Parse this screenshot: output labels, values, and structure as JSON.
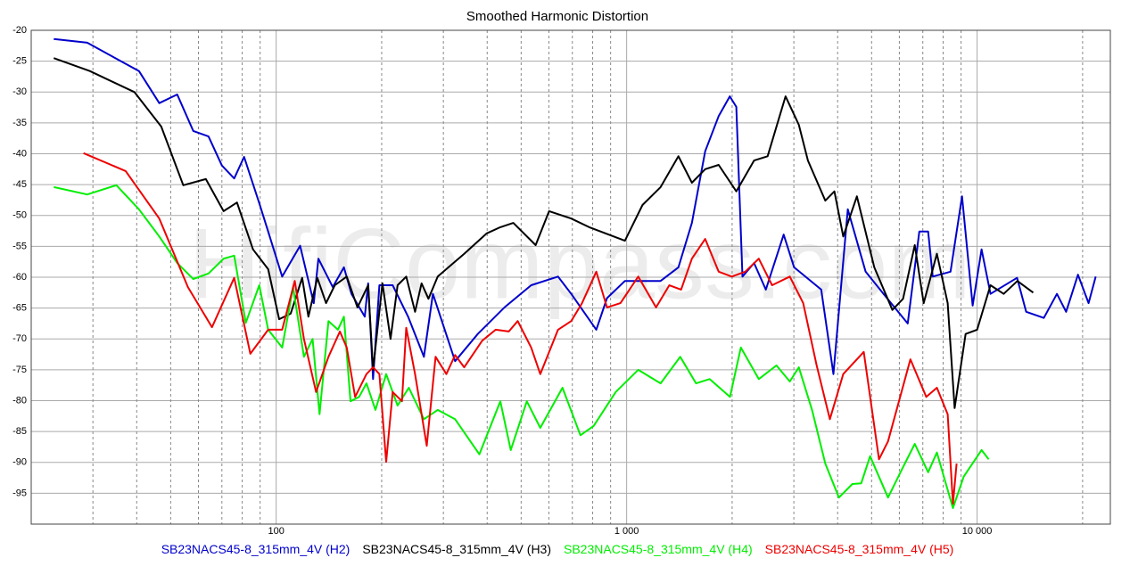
{
  "chart_data": {
    "type": "line",
    "title": "Smoothed Harmonic Distortion",
    "watermark": "HifiCompass.com",
    "xscale": "log",
    "xlim": [
      20,
      24000
    ],
    "xticks": [
      100,
      {
        "value": 1000,
        "label": "1 000"
      },
      {
        "value": 10000,
        "label": "10 000"
      }
    ],
    "xminor_ticks": [
      30,
      40,
      50,
      60,
      70,
      80,
      90,
      200,
      300,
      400,
      500,
      600,
      700,
      800,
      900,
      2000,
      3000,
      4000,
      5000,
      6000,
      7000,
      8000,
      9000,
      20000
    ],
    "ylim": [
      -100,
      -20
    ],
    "yticks": [
      -20,
      -25,
      -30,
      -35,
      -40,
      -45,
      -50,
      -55,
      -60,
      -65,
      -70,
      -75,
      -80,
      -85,
      -90,
      -95
    ],
    "grid": true,
    "legend": "bottom",
    "series": [
      {
        "name": "SB23NACS45-8_315mm_4V (H2)",
        "color": "#0000cc",
        "x": [
          23.2,
          28.9,
          35,
          40.6,
          46.4,
          52.2,
          58,
          64.1,
          70,
          75.9,
          81,
          89.5,
          94.9,
          104,
          117,
          128,
          132,
          145,
          156,
          164,
          179,
          183,
          189,
          197,
          215,
          238,
          264,
          280,
          324,
          376,
          448,
          534,
          637,
          695,
          819,
          879,
          989,
          1250,
          1405,
          1535,
          1675,
          1830,
          1970,
          2055,
          2140,
          2310,
          2495,
          2805,
          3005,
          3590,
          3890,
          4275,
          4808,
          5410,
          6340,
          6840,
          7250,
          7470,
          8400,
          9060,
          9710,
          10300,
          10920,
          13000,
          13800,
          15500,
          16900,
          17950,
          19400,
          20800,
          21800
        ],
        "values": [
          -21.4,
          -22.0,
          -24.6,
          -26.6,
          -31.8,
          -30.4,
          -36.3,
          -37.2,
          -41.9,
          -44.0,
          -40.5,
          -48.0,
          -52.6,
          -59.9,
          -54.9,
          -64.2,
          -57.0,
          -61.6,
          -58.4,
          -62.7,
          -66.4,
          -61.0,
          -76.5,
          -61.3,
          -61.3,
          -66.4,
          -72.9,
          -62.7,
          -73.6,
          -69.2,
          -64.9,
          -61.3,
          -59.9,
          -62.7,
          -68.5,
          -63.4,
          -60.6,
          -60.6,
          -58.4,
          -51.2,
          -39.6,
          -33.9,
          -30.7,
          -32.4,
          -59.9,
          -57.7,
          -62.0,
          -53.1,
          -58.4,
          -62.0,
          -75.7,
          -49.0,
          -59.1,
          -62.7,
          -67.5,
          -52.6,
          -52.6,
          -59.9,
          -59.1,
          -46.9,
          -64.6,
          -55.5,
          -62.7,
          -60.1,
          -65.6,
          -66.6,
          -62.7,
          -65.6,
          -59.6,
          -64.2,
          -59.9
        ]
      },
      {
        "name": "SB23NACS45-8_315mm_4V (H3)",
        "color": "#000000",
        "x": [
          23.2,
          29.4,
          39.4,
          47,
          54.3,
          63,
          70.8,
          77.3,
          85.9,
          94.9,
          102,
          110,
          118.6,
          123.6,
          131,
          138.8,
          147,
          159,
          170.6,
          183,
          189,
          201,
          212,
          222,
          235,
          249,
          260,
          272,
          289,
          344,
          399,
          436,
          475,
          550,
          601,
          695,
          782,
          989,
          1110,
          1250,
          1405,
          1535,
          1675,
          1830,
          2055,
          2310,
          2525,
          2840,
          3100,
          3290,
          3690,
          3915,
          4150,
          4540,
          5090,
          5730,
          6150,
          6640,
          7040,
          7680,
          8240,
          8630,
          9270,
          10000,
          10920,
          11910,
          13030,
          14460
        ],
        "values": [
          -24.5,
          -26.6,
          -30.0,
          -35.6,
          -45.1,
          -44.1,
          -49.3,
          -47.9,
          -55.5,
          -58.7,
          -66.8,
          -65.9,
          -60.1,
          -66.4,
          -60.1,
          -64.2,
          -61.3,
          -59.9,
          -64.9,
          -61.3,
          -75.0,
          -61.0,
          -70.0,
          -61.3,
          -59.9,
          -65.6,
          -61.0,
          -63.5,
          -59.9,
          -56.2,
          -52.9,
          -51.9,
          -51.2,
          -54.8,
          -49.3,
          -50.5,
          -51.9,
          -54.1,
          -48.3,
          -45.4,
          -40.4,
          -44.7,
          -42.5,
          -41.8,
          -46.1,
          -41.1,
          -40.4,
          -30.7,
          -35.3,
          -41.1,
          -47.6,
          -46.1,
          -53.4,
          -46.9,
          -58.4,
          -65.3,
          -63.5,
          -54.8,
          -64.2,
          -56.2,
          -64.2,
          -81.2,
          -69.2,
          -68.5,
          -61.3,
          -62.7,
          -60.6,
          -62.5
        ]
      },
      {
        "name": "SB23NACS45-8_315mm_4V (H4)",
        "color": "#00ee00",
        "x": [
          23.2,
          28.9,
          35,
          40.6,
          46.4,
          52.2,
          58,
          64.1,
          70.8,
          75.9,
          81.9,
          89.5,
          94.9,
          104,
          111.7,
          120,
          127,
          133,
          141,
          150,
          156,
          163,
          172.4,
          181,
          192,
          206,
          222,
          239,
          264,
          289,
          324,
          380,
          436,
          467,
          519,
          567,
          656,
          738,
          805,
          931,
          1079,
          1250,
          1422,
          1578,
          1725,
          1972,
          2118,
          2382,
          2675,
          2922,
          3100,
          3380,
          3690,
          4035,
          4405,
          4670,
          4950,
          5570,
          6080,
          6640,
          7250,
          7680,
          8530,
          9160,
          10300,
          10790
        ],
        "values": [
          -45.4,
          -46.6,
          -45.1,
          -49.0,
          -53.4,
          -57.7,
          -60.3,
          -59.4,
          -57.0,
          -56.5,
          -67.4,
          -61.3,
          -68.5,
          -71.4,
          -61.6,
          -72.9,
          -70.0,
          -82.2,
          -67.1,
          -68.5,
          -66.4,
          -80.1,
          -79.4,
          -77.2,
          -81.5,
          -75.7,
          -80.8,
          -77.9,
          -83.0,
          -81.5,
          -83.0,
          -88.7,
          -80.1,
          -88.0,
          -80.1,
          -84.4,
          -77.9,
          -85.6,
          -84.1,
          -78.6,
          -75.0,
          -77.2,
          -72.9,
          -77.2,
          -76.5,
          -79.4,
          -71.4,
          -76.5,
          -74.3,
          -76.9,
          -74.6,
          -81.5,
          -90.2,
          -95.7,
          -93.5,
          -93.4,
          -89.0,
          -95.7,
          -91.3,
          -87.0,
          -91.6,
          -88.4,
          -97.4,
          -92.3,
          -88.0,
          -89.5
        ]
      },
      {
        "name": "SB23NACS45-8_315mm_4V (H5)",
        "color": "#ee0000",
        "x": [
          28.2,
          37.2,
          46.4,
          56,
          65.6,
          75.9,
          84.4,
          94.9,
          104,
          113,
          120,
          130,
          141,
          152,
          159,
          168,
          181,
          189,
          197,
          206,
          215,
          228.5,
          235,
          249,
          269,
          285,
          306,
          324,
          344,
          387,
          423,
          461,
          489,
          534,
          567,
          637,
          695,
          746,
          819,
          879,
          960,
          1079,
          1213,
          1324,
          1430,
          1535,
          1675,
          1830,
          1995,
          2180,
          2382,
          2600,
          2922,
          3190,
          3485,
          3800,
          4150,
          4750,
          5250,
          5570,
          6450,
          7160,
          7680,
          8240,
          8530,
          8740
        ],
        "values": [
          -39.9,
          -42.8,
          -50.5,
          -61.6,
          -68.1,
          -60.1,
          -72.4,
          -68.5,
          -68.5,
          -60.6,
          -70.0,
          -78.6,
          -72.9,
          -68.8,
          -71.4,
          -79.4,
          -75.7,
          -74.6,
          -75.7,
          -89.9,
          -78.6,
          -80.1,
          -68.2,
          -75.7,
          -87.3,
          -72.9,
          -75.7,
          -72.6,
          -74.6,
          -70.3,
          -68.5,
          -68.8,
          -67.1,
          -71.4,
          -75.7,
          -68.5,
          -67.1,
          -64.2,
          -59.1,
          -64.9,
          -64.2,
          -59.9,
          -64.9,
          -61.3,
          -62.0,
          -57.0,
          -53.8,
          -59.1,
          -59.9,
          -59.1,
          -57.0,
          -61.3,
          -59.9,
          -64.2,
          -74.3,
          -83.0,
          -75.7,
          -72.1,
          -89.5,
          -86.6,
          -73.3,
          -79.4,
          -77.9,
          -82.2,
          -96.7,
          -90.2
        ]
      }
    ]
  }
}
